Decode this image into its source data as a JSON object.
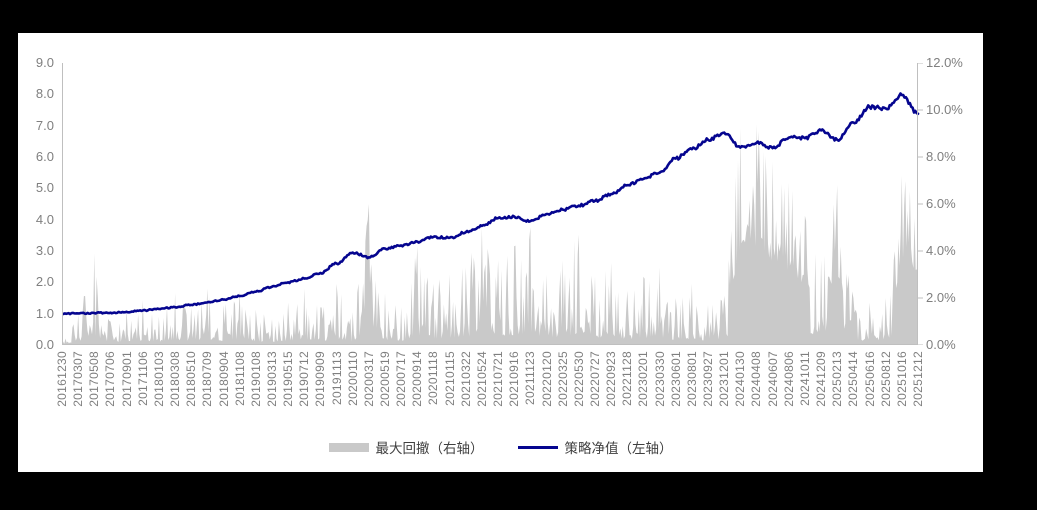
{
  "chart_data": {
    "type": "combo",
    "grid": false,
    "legend_position": "bottom",
    "categories": [
      "20161230",
      "20170307",
      "20170508",
      "20170706",
      "20170901",
      "20171106",
      "20180103",
      "20180308",
      "20180510",
      "20180709",
      "20180904",
      "20181108",
      "20190108",
      "20190313",
      "20190515",
      "20190712",
      "20190909",
      "20191113",
      "20200110",
      "20200317",
      "20200519",
      "20200717",
      "20200914",
      "20201118",
      "20210115",
      "20210322",
      "20210524",
      "20210721",
      "20210916",
      "20211123",
      "20220120",
      "20220325",
      "20220530",
      "20220727",
      "20220923",
      "20221128",
      "20230201",
      "20230330",
      "20230601",
      "20230801",
      "20230927",
      "20231201",
      "20240130",
      "20240408",
      "20240607",
      "20240806",
      "20241011",
      "20241209",
      "20250213",
      "20250414",
      "20250616",
      "20250812",
      "20251016",
      "20251212"
    ],
    "series": [
      {
        "name": "最大回撤（右轴）",
        "type": "area",
        "axis": "right",
        "color": "#c9c9c9",
        "unit": "%",
        "values": [
          0.3,
          1.3,
          3.9,
          1.0,
          1.5,
          1.9,
          1.2,
          2.2,
          1.6,
          2.4,
          1.7,
          2.3,
          1.5,
          1.1,
          1.8,
          2.4,
          1.6,
          2.6,
          1.4,
          6.0,
          2.2,
          1.6,
          4.2,
          2.6,
          3.0,
          3.3,
          5.0,
          3.6,
          4.2,
          5.0,
          3.0,
          3.6,
          4.7,
          2.9,
          3.5,
          2.3,
          2.9,
          3.3,
          2.0,
          2.6,
          1.7,
          2.1,
          9.2,
          9.4,
          7.8,
          6.9,
          5.5,
          3.6,
          6.8,
          2.0,
          1.8,
          2.0,
          7.2,
          7.1
        ]
      },
      {
        "name": "策略净值（左轴）",
        "type": "line",
        "axis": "left",
        "color": "#05058f",
        "values": [
          1.0,
          1.01,
          1.02,
          1.03,
          1.06,
          1.1,
          1.15,
          1.21,
          1.28,
          1.36,
          1.45,
          1.56,
          1.7,
          1.86,
          2.0,
          2.12,
          2.3,
          2.6,
          2.95,
          2.8,
          3.08,
          3.18,
          3.3,
          3.45,
          3.42,
          3.6,
          3.8,
          4.05,
          4.1,
          3.95,
          4.18,
          4.32,
          4.45,
          4.6,
          4.82,
          5.1,
          5.3,
          5.5,
          5.95,
          6.25,
          6.55,
          6.78,
          6.3,
          6.45,
          6.28,
          6.62,
          6.6,
          6.85,
          6.55,
          7.1,
          7.6,
          7.55,
          7.98,
          7.38
        ]
      }
    ],
    "left_axis": {
      "min": 0,
      "max": 9,
      "tick_interval": 1.0,
      "ticks": [
        "9.0",
        "8.0",
        "7.0",
        "6.0",
        "5.0",
        "4.0",
        "3.0",
        "2.0",
        "1.0",
        "0.0"
      ]
    },
    "right_axis": {
      "min": 0,
      "max": 12,
      "tick_interval": 2.0,
      "ticks": [
        "12.0%",
        "10.0%",
        "8.0%",
        "6.0%",
        "4.0%",
        "2.0%",
        "0.0%"
      ]
    },
    "axis_color": "#bfbfbf",
    "tick_label_color": "#7f7f7f"
  }
}
